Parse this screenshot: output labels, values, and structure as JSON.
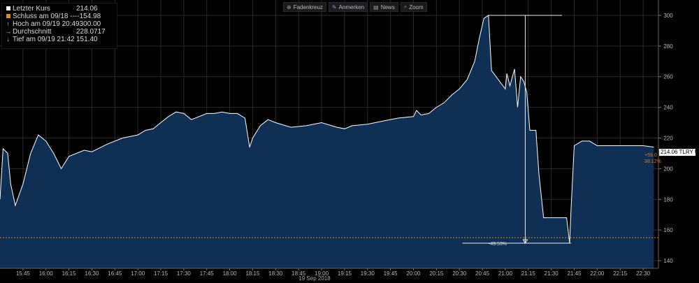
{
  "legend": {
    "last_label": "Letzter Kurs",
    "last_value": "214.06",
    "close_label": "Schluss am 09/18 ----",
    "close_value": "154.98",
    "high_label": "Hoch am 09/19 20:49",
    "high_value": "300.00",
    "avg_label": "Durchschnitt",
    "avg_value": "228.0717",
    "low_label": "Tief am 09/19 21:42",
    "low_value": "151.40",
    "close_color": "#e08a2a",
    "high_marker": "↑",
    "avg_marker": "→",
    "low_marker": "↓"
  },
  "toolbar": {
    "crosshair_label": "Fadenkreuz",
    "crosshair_icon": "crosshair-icon",
    "annotate_label": "Anmerken",
    "annotate_icon": "pencil-icon",
    "news_label": "News",
    "news_icon": "news-icon",
    "zoom_label": "Zoom",
    "zoom_icon": "magnifier-icon"
  },
  "price_tag": "214.06 TLRY US",
  "change_abs": "+59.0",
  "change_pct": "38.12%",
  "drawdown_label": "-49.53%",
  "date_label": "19 Sep 2018",
  "colors": {
    "area_fill": "#0f2f55",
    "line": "#ffffff",
    "close_line": "#e08a2a",
    "background": "#000000",
    "grid": "#2b2b2b"
  },
  "chart_data": {
    "type": "area",
    "x_ticks": [
      "15:45",
      "16:00",
      "16:15",
      "16:30",
      "16:45",
      "17:00",
      "17:15",
      "17:30",
      "17:45",
      "18:00",
      "18:15",
      "18:30",
      "18:45",
      "19:00",
      "19:15",
      "19:30",
      "19:45",
      "20:00",
      "20:15",
      "20:30",
      "20:45",
      "21:00",
      "21:15",
      "21:30",
      "21:45",
      "22:00",
      "22:15",
      "22:30"
    ],
    "y_ticks": [
      140,
      160,
      180,
      200,
      220,
      240,
      260,
      280,
      300
    ],
    "ylim": [
      135,
      310
    ],
    "xlim": [
      "15:30",
      "22:40"
    ],
    "reference_line": 154.98,
    "series": [
      {
        "x": [
          "15:30",
          "15:32",
          "15:35",
          "15:37",
          "15:40",
          "15:45",
          "15:50",
          "15:55",
          "16:00",
          "16:05",
          "16:10",
          "16:15",
          "16:20",
          "16:25",
          "16:30",
          "16:40",
          "16:50",
          "17:00",
          "17:05",
          "17:10",
          "17:15",
          "17:20",
          "17:25",
          "17:30",
          "17:35",
          "17:40",
          "17:45",
          "17:50",
          "17:55",
          "18:00",
          "18:05",
          "18:10",
          "18:13",
          "18:15",
          "18:20",
          "18:25",
          "18:30",
          "18:40",
          "18:50",
          "19:00",
          "19:10",
          "19:15",
          "19:20",
          "19:30",
          "19:40",
          "19:50",
          "20:00",
          "20:02",
          "20:05",
          "20:10",
          "20:15",
          "20:20",
          "20:25",
          "20:30",
          "20:35",
          "20:40",
          "20:43",
          "20:46",
          "20:49",
          "20:51",
          "21:00",
          "21:01",
          "21:03",
          "21:06",
          "21:08",
          "21:10",
          "21:12",
          "21:14",
          "21:16",
          "21:17",
          "21:20",
          "21:22",
          "21:25",
          "21:30",
          "21:35",
          "21:40",
          "21:42",
          "21:43",
          "21:45",
          "21:50",
          "21:55",
          "22:00",
          "22:05",
          "22:10",
          "22:15",
          "22:20",
          "22:25",
          "22:30",
          "22:37"
        ],
        "y": [
          180,
          213,
          210,
          190,
          176,
          190,
          210,
          222,
          218,
          210,
          200,
          208,
          210,
          212,
          211,
          216,
          220,
          222,
          225,
          226,
          230,
          234,
          237,
          236,
          232,
          234,
          236,
          236,
          237,
          236,
          236,
          233,
          214,
          220,
          228,
          232,
          230,
          227,
          228,
          230,
          227,
          226,
          228,
          229,
          231,
          233,
          234,
          238,
          235,
          236,
          240,
          243,
          248,
          252,
          258,
          270,
          285,
          298,
          300,
          264,
          252,
          262,
          254,
          265,
          240,
          260,
          257,
          250,
          225,
          225,
          225,
          196,
          168,
          168,
          168,
          168,
          151.4,
          175,
          215,
          218,
          218,
          215,
          215,
          215,
          215,
          215,
          215,
          215,
          214.06
        ]
      }
    ]
  }
}
